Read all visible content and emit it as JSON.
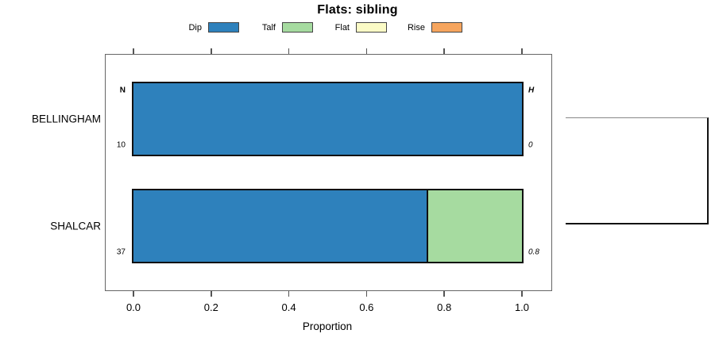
{
  "title": "Flats: sibling",
  "legend": {
    "items": [
      {
        "label": "Dip",
        "color": "#2E81BC"
      },
      {
        "label": "Talf",
        "color": "#A6DBA0"
      },
      {
        "label": "Flat",
        "color": "#FBFBC6"
      },
      {
        "label": "Rise",
        "color": "#F6A55E"
      }
    ]
  },
  "colors": {
    "dip": "#2E81BC",
    "talf": "#A6DBA0",
    "flat": "#FBFBC6",
    "rise": "#F6A55E",
    "bar_border": "#111111",
    "plot_border": "#666666",
    "tick": "#555555"
  },
  "chart_data": {
    "type": "bar",
    "orientation": "horizontal-stacked",
    "title": "Flats: sibling",
    "xlabel": "Proportion",
    "xlim": [
      0,
      1
    ],
    "x_ticks": [
      0,
      0.2,
      0.4,
      0.6,
      0.8,
      1.0
    ],
    "x_tick_labels": [
      "0.0",
      "0.2",
      "0.4",
      "0.6",
      "0.8",
      "1.0"
    ],
    "stack_categories": [
      "Dip",
      "Talf",
      "Flat",
      "Rise"
    ],
    "col_headers": {
      "left": "N",
      "right": "H"
    },
    "rows": [
      {
        "name": "BELLINGHAM",
        "n": "10",
        "h": "0",
        "show_headers": true,
        "segments": [
          {
            "category": "Dip",
            "value": 1.0
          }
        ]
      },
      {
        "name": "SHALCAR",
        "n": "37",
        "h": "0.8",
        "show_headers": false,
        "segments": [
          {
            "category": "Dip",
            "value": 0.755
          },
          {
            "category": "Talf",
            "value": 0.245
          }
        ]
      }
    ],
    "grid": false,
    "legend_position": "top"
  }
}
